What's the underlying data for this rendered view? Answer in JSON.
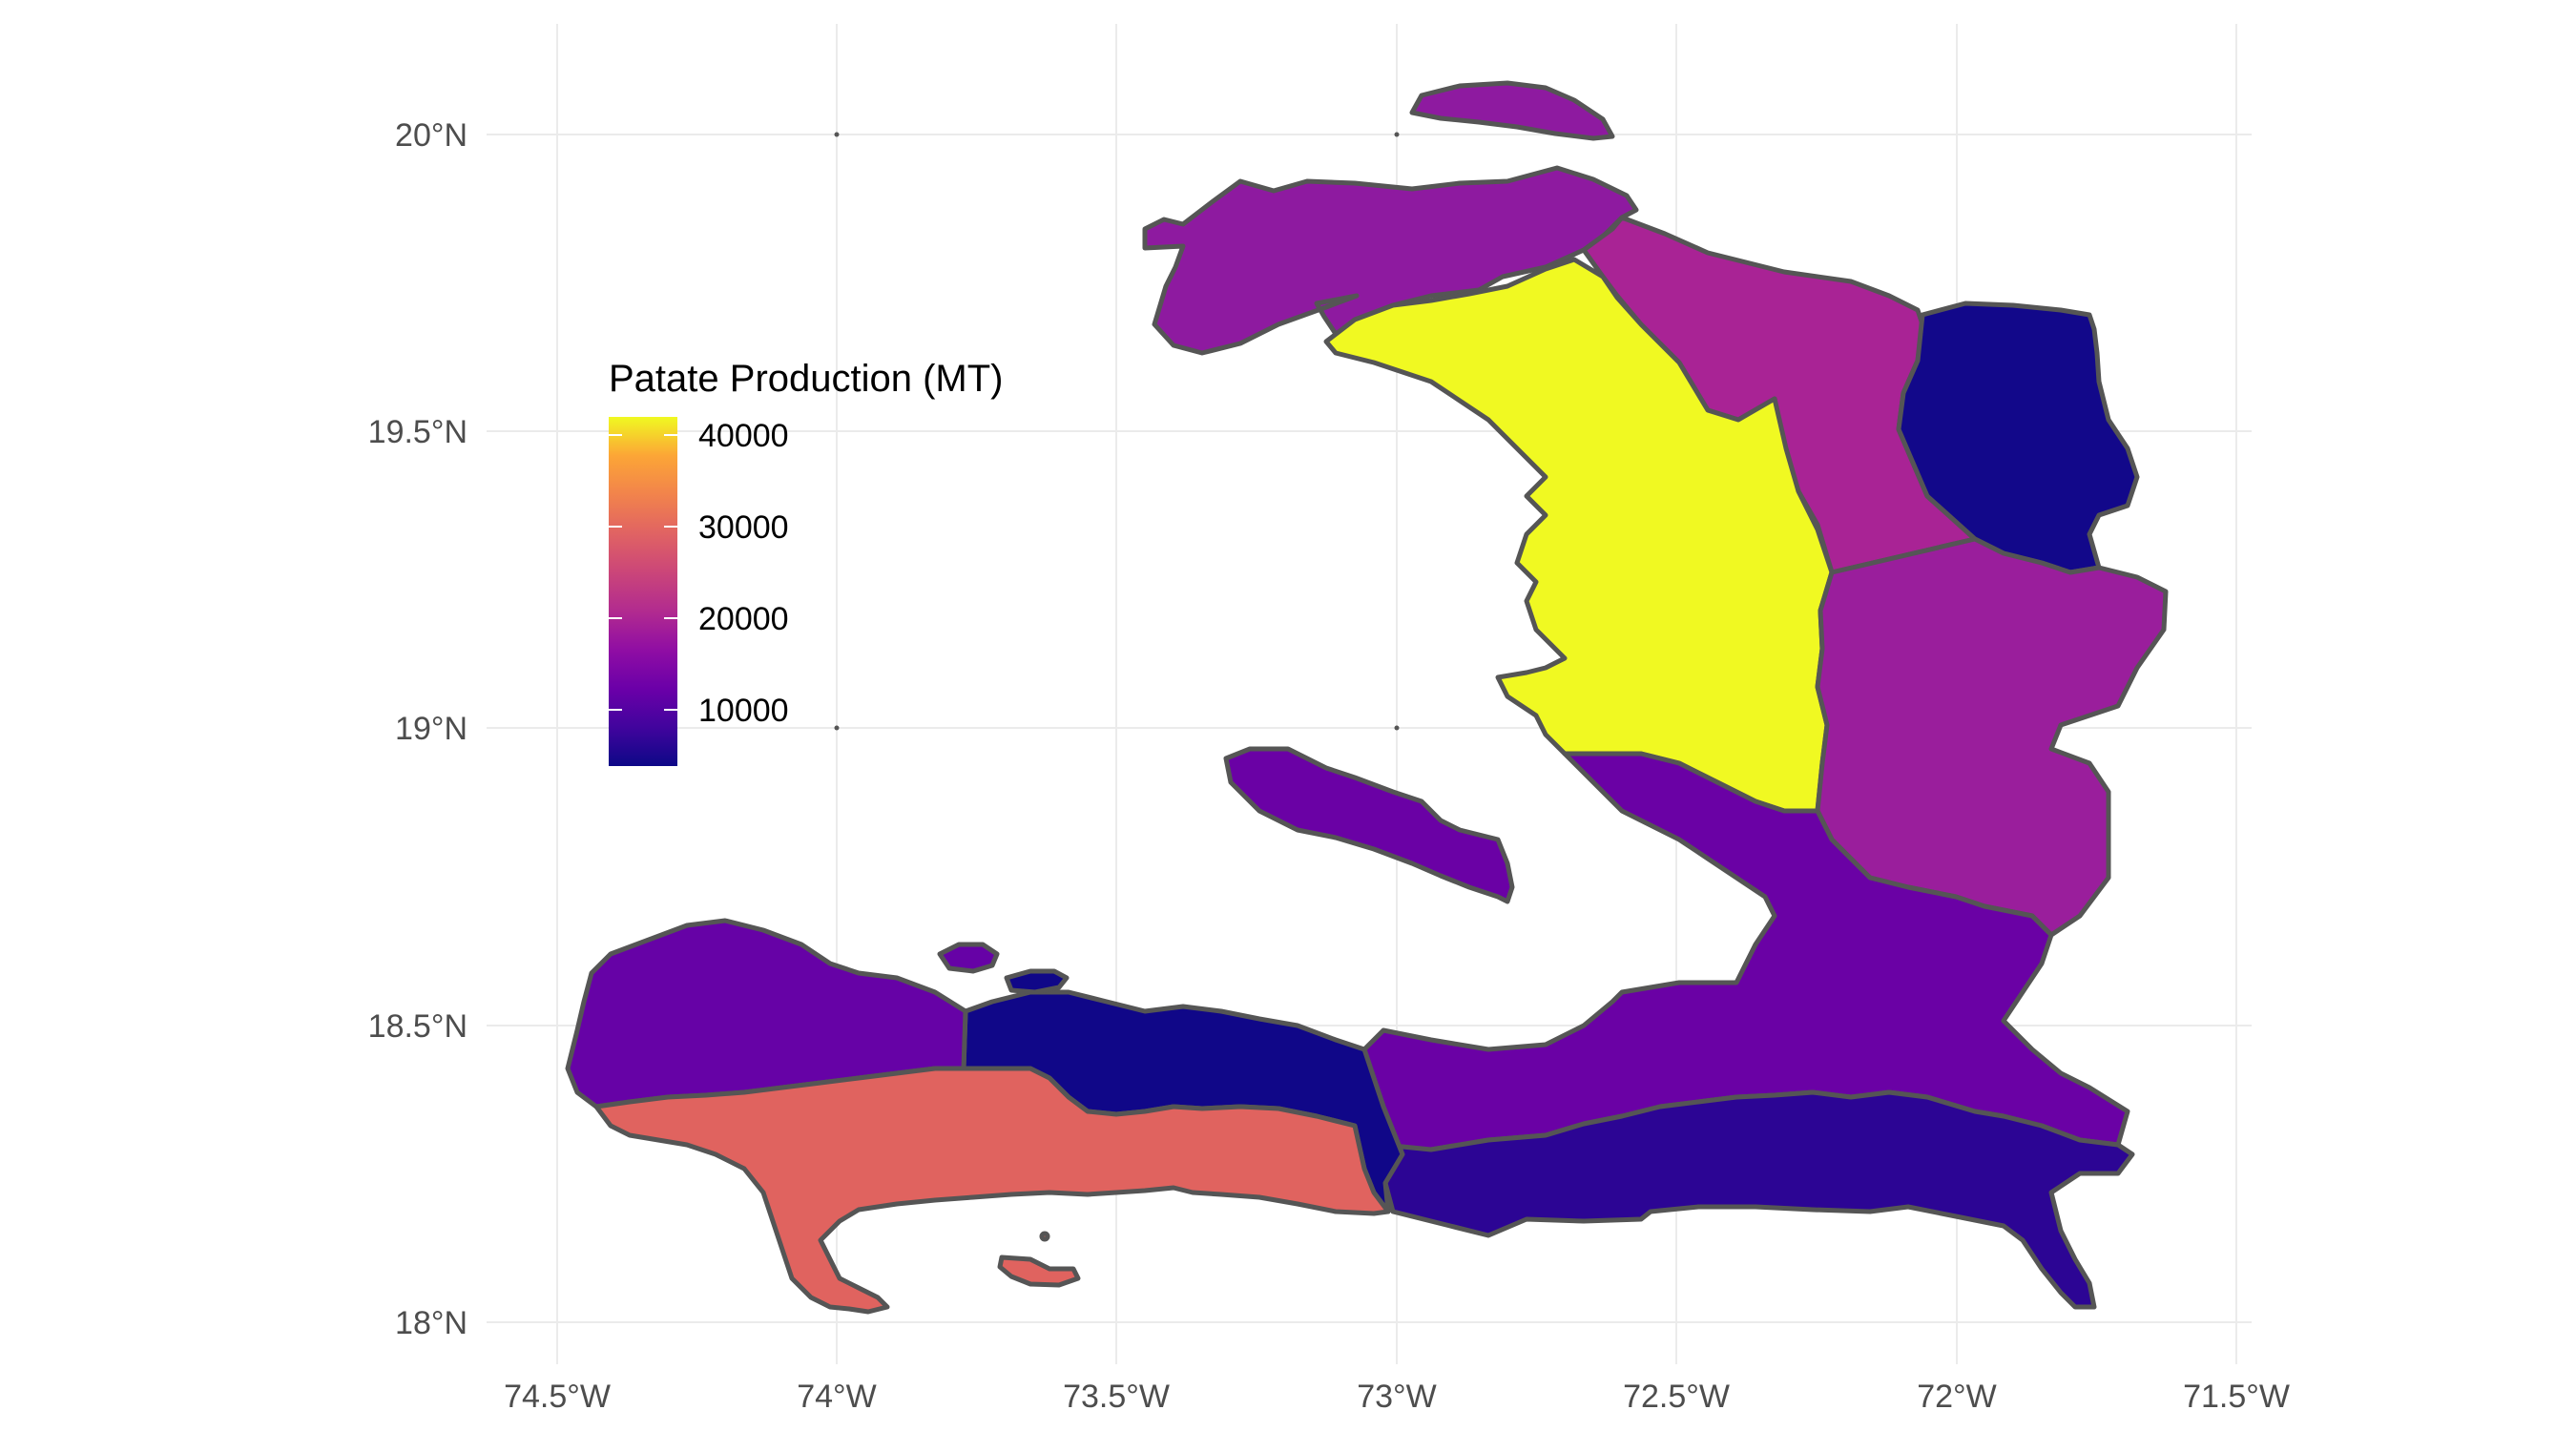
{
  "map": {
    "x_axis": {
      "ticks": [
        "74.5°W",
        "74°W",
        "73.5°W",
        "73°W",
        "72.5°W",
        "72°W",
        "71.5°W"
      ],
      "values": [
        -74.5,
        -74.0,
        -73.5,
        -73.0,
        -72.5,
        -72.0,
        -71.5
      ]
    },
    "y_axis": {
      "ticks": [
        "20°N",
        "19.5°N",
        "19°N",
        "18.5°N",
        "18°N"
      ],
      "values": [
        20.0,
        19.5,
        19.0,
        18.5,
        18.0
      ]
    },
    "legend": {
      "title": "Patate Production (MT)",
      "labels": [
        "40000",
        "30000",
        "20000",
        "10000"
      ],
      "values": [
        40000,
        30000,
        20000,
        10000
      ],
      "min": 6500,
      "max": 42500,
      "palette": "plasma"
    },
    "border_color": "#555555",
    "regions": [
      {
        "key": "nord-ouest",
        "value": 15000,
        "color": "#8e1aa0"
      },
      {
        "key": "nord",
        "value": 19500,
        "color": "#a92395"
      },
      {
        "key": "nord-est",
        "value": 6500,
        "color": "#12088a"
      },
      {
        "key": "artibonite",
        "value": 42500,
        "color": "#f0f922"
      },
      {
        "key": "centre",
        "value": 17500,
        "color": "#9a1e9c"
      },
      {
        "key": "ouest",
        "value": 11500,
        "color": "#6a01a5"
      },
      {
        "key": "sud-est",
        "value": 8000,
        "color": "#2c0594"
      },
      {
        "key": "nippes",
        "value": 6800,
        "color": "#100788"
      },
      {
        "key": "grande-anse",
        "value": 11500,
        "color": "#6602a6"
      },
      {
        "key": "sud",
        "value": 27000,
        "color": "#e0635f"
      }
    ]
  }
}
